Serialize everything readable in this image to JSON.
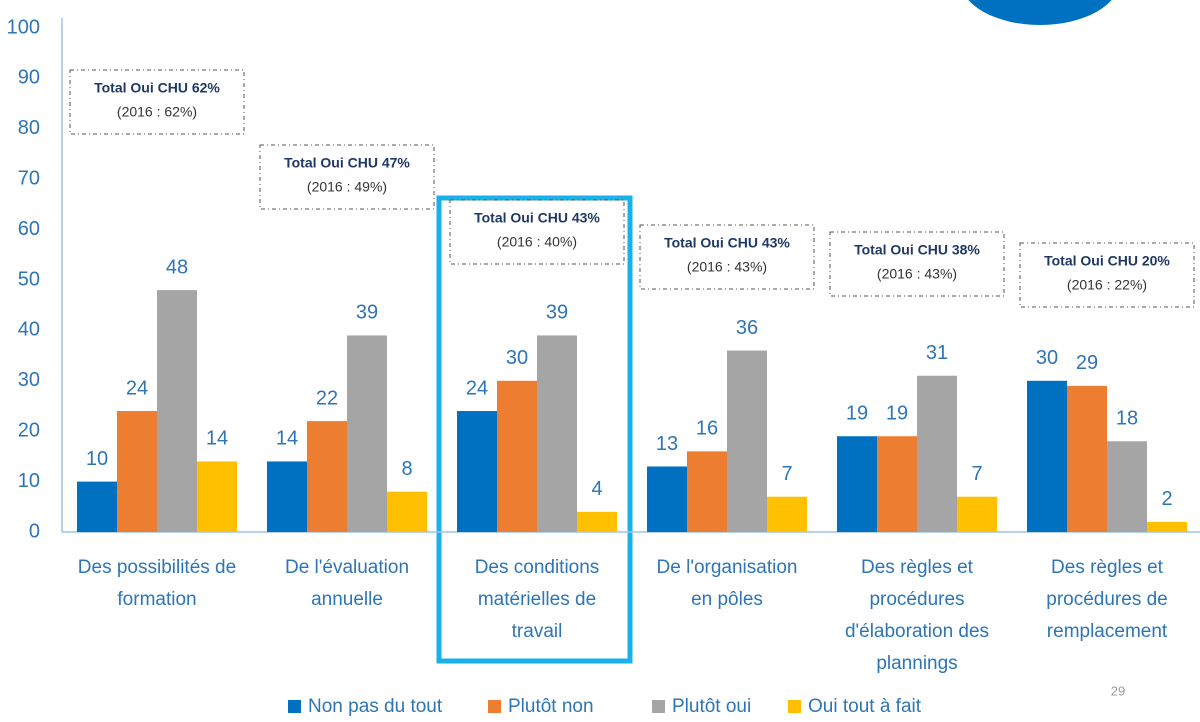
{
  "chart_data": {
    "type": "bar",
    "categories": [
      [
        "Des possibilités de",
        "formation"
      ],
      [
        "De l'évaluation",
        "annuelle"
      ],
      [
        "Des conditions",
        "matérielles de",
        "travail"
      ],
      [
        "De l'organisation",
        "en pôles"
      ],
      [
        "Des règles et",
        "procédures",
        "d'élaboration des",
        "plannings"
      ],
      [
        "Des règles et",
        "procédures de",
        "remplacement"
      ]
    ],
    "series": [
      {
        "name": "Non pas du tout",
        "color": "#0070c0",
        "values": [
          10,
          14,
          24,
          13,
          19,
          30
        ]
      },
      {
        "name": "Plutôt non",
        "color": "#ed7d31",
        "values": [
          24,
          22,
          30,
          16,
          19,
          29
        ]
      },
      {
        "name": "Plutôt oui",
        "color": "#a5a5a5",
        "values": [
          48,
          39,
          39,
          36,
          31,
          18
        ]
      },
      {
        "name": "Oui tout à fait",
        "color": "#ffc000",
        "values": [
          14,
          8,
          4,
          7,
          7,
          2
        ]
      }
    ],
    "annotations": [
      {
        "text": "Total Oui CHU 62%",
        "note": "(2016 : 62%)"
      },
      {
        "text": "Total Oui CHU 47%",
        "note": "(2016 : 49%)"
      },
      {
        "text": "Total Oui CHU 43%",
        "note": "(2016 : 40%)"
      },
      {
        "text": "Total Oui CHU 43%",
        "note": "(2016 : 43%)"
      },
      {
        "text": "Total Oui CHU 38%",
        "note": "(2016 : 43%)"
      },
      {
        "text": "Total Oui CHU 20%",
        "note": "(2016 : 22%)"
      }
    ],
    "ylim": [
      0,
      100
    ],
    "yticks": [
      0,
      10,
      20,
      30,
      40,
      50,
      60,
      70,
      80,
      90,
      100
    ],
    "grid": false,
    "legend": "bottom"
  },
  "page_number": "29"
}
